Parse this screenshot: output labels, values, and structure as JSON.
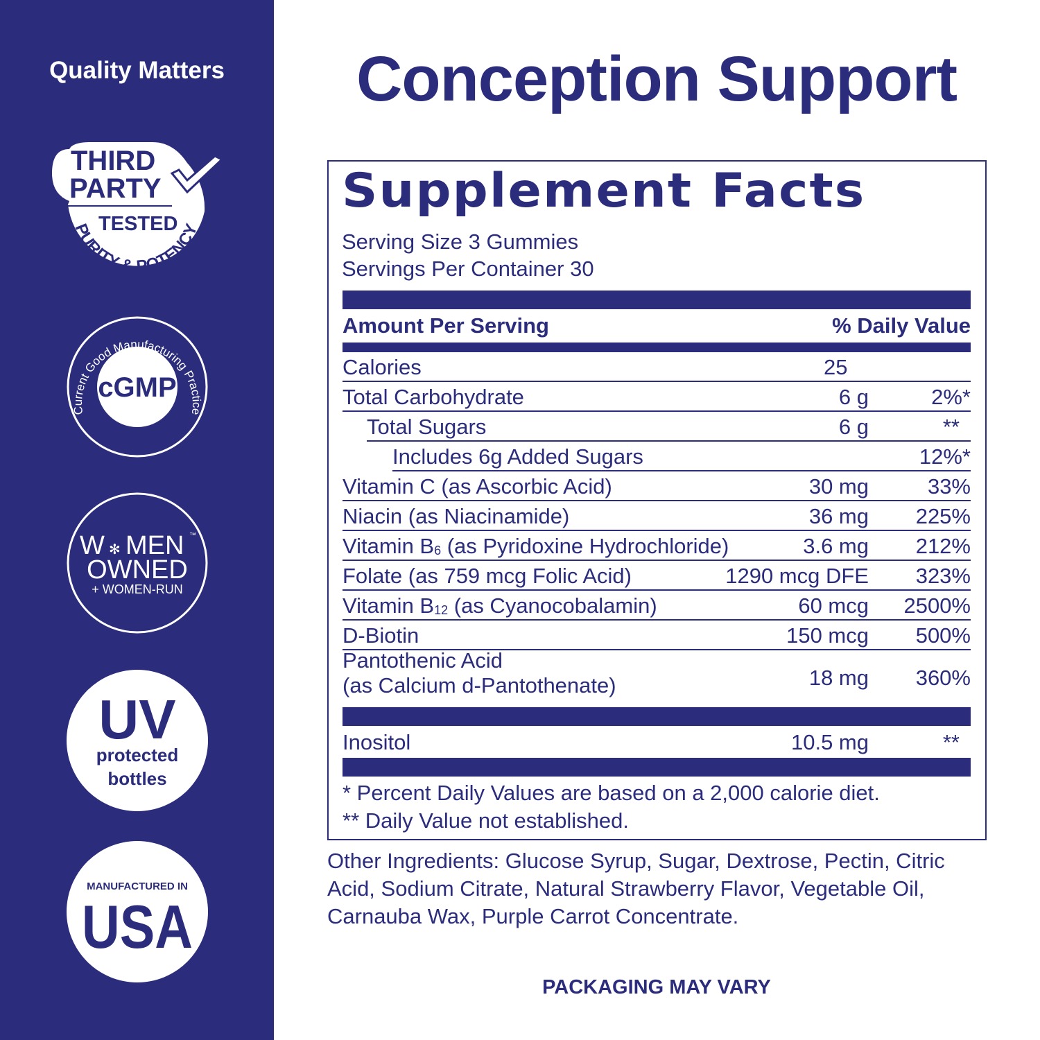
{
  "sidebar": {
    "heading": "Quality Matters",
    "badges": [
      {
        "icon": "third-party-tested-badge",
        "lines": [
          "THIRD",
          "PARTY",
          "TESTED",
          "PURITY & POTENCY"
        ]
      },
      {
        "icon": "cgmp-badge",
        "lines": [
          "cGMP",
          "Current Good Manufacturing Practice"
        ]
      },
      {
        "icon": "women-owned-badge",
        "lines": [
          "W",
          "MEN",
          "OWNED",
          "+ WOMEN-RUN",
          "™"
        ]
      },
      {
        "icon": "uv-protected-badge",
        "lines": [
          "UV",
          "protected",
          "bottles"
        ]
      },
      {
        "icon": "made-in-usa-badge",
        "lines": [
          "MANUFACTURED IN",
          "USA"
        ]
      }
    ]
  },
  "title": "Conception Support",
  "facts": {
    "heading": "Supplement Facts",
    "serving_size": "Serving Size 3 Gummies",
    "servings_per_container": "Servings Per Container 30",
    "col_amount": "Amount Per Serving",
    "col_dv": "% Daily Value",
    "calories": {
      "name": "Calories",
      "amount": "25"
    },
    "rows": [
      {
        "name": "Total Carbohydrate",
        "amount": "6 g",
        "dv": "2%*"
      },
      {
        "name": "Total Sugars",
        "amount": "6 g",
        "dv": "**"
      },
      {
        "name": "Includes 6g Added Sugars",
        "amount": "",
        "dv": "12%*"
      },
      {
        "name": "Vitamin C (as Ascorbic Acid)",
        "amount": "30 mg",
        "dv": "33%"
      },
      {
        "name": "Niacin (as Niacinamide)",
        "amount": "36 mg",
        "dv": "225%"
      },
      {
        "name_pre": "Vitamin B",
        "name_sub": "6",
        "name_post": " (as Pyridoxine Hydrochloride)",
        "amount": "3.6 mg",
        "dv": "212%"
      },
      {
        "name": "Folate (as 759 mcg Folic Acid)",
        "amount": "1290 mcg DFE",
        "dv": "323%"
      },
      {
        "name_pre": "Vitamin B",
        "name_sub": "12",
        "name_post": " (as Cyanocobalamin)",
        "amount": "60 mcg",
        "dv": "2500%"
      },
      {
        "name": "D-Biotin",
        "amount": "150 mcg",
        "dv": "500%"
      },
      {
        "name": "Pantothenic Acid",
        "name2": "(as Calcium d-Pantothenate)",
        "amount": "18 mg",
        "dv": "360%"
      }
    ],
    "inositol": {
      "name": "Inositol",
      "amount": "10.5 mg",
      "dv": "**"
    },
    "footnote1": "* Percent Daily Values are based on a 2,000 calorie diet.",
    "footnote2": "** Daily Value not established."
  },
  "other_ingredients": "Other Ingredients: Glucose Syrup, Sugar, Dextrose, Pectin, Citric Acid, Sodium Citrate, Natural Strawberry Flavor, Vegetable Oil, Carnauba Wax, Purple Carrot Concentrate.",
  "packaging_note": "PACKAGING MAY VARY",
  "colors": {
    "navy": "#2b2d7c",
    "white": "#ffffff"
  }
}
